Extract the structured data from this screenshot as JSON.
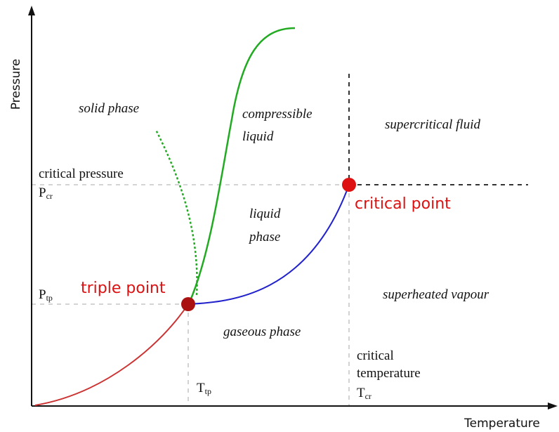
{
  "axes": {
    "y_label": "Pressure",
    "x_label": "Temperature"
  },
  "regions": {
    "solid": "solid phase",
    "compressible_1": "compressible",
    "compressible_2": "liquid",
    "supercritical": "supercritical fluid",
    "liquid_1": "liquid",
    "liquid_2": "phase",
    "superheated": "superheated vapour",
    "gaseous": "gaseous phase"
  },
  "points": {
    "critical": "critical point",
    "triple": "triple point"
  },
  "labels": {
    "critical_pressure": "critical pressure",
    "p_cr": {
      "symbol": "P",
      "subscript": "cr"
    },
    "p_tp": {
      "symbol": "P",
      "subscript": "tp"
    },
    "t_tp": {
      "symbol": "T",
      "subscript": "tp"
    },
    "critical_temperature_1": "critical",
    "critical_temperature_2": "temperature",
    "t_cr": {
      "symbol": "T",
      "subscript": "cr"
    }
  }
}
